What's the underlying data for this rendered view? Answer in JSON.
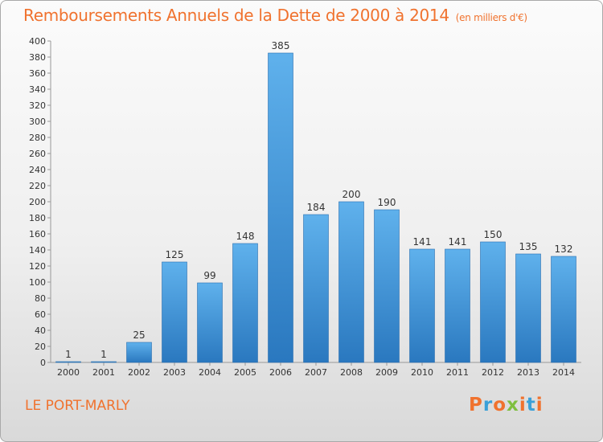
{
  "chart_data": {
    "type": "bar",
    "title": "Remboursements Annuels de la Dette de 2000 à 2014",
    "subtitle": "(en milliers d'€)",
    "categories": [
      "2000",
      "2001",
      "2002",
      "2003",
      "2004",
      "2005",
      "2006",
      "2007",
      "2008",
      "2009",
      "2010",
      "2011",
      "2012",
      "2013",
      "2014"
    ],
    "values": [
      1,
      1,
      25,
      125,
      99,
      148,
      385,
      184,
      200,
      190,
      141,
      141,
      150,
      135,
      132
    ],
    "ylim": [
      0,
      400
    ],
    "yticks": [
      0,
      20,
      40,
      60,
      80,
      100,
      120,
      140,
      160,
      180,
      200,
      220,
      240,
      260,
      280,
      300,
      320,
      340,
      360,
      380,
      400
    ],
    "grid": false,
    "bar_color": "#3f95d8"
  },
  "footer": {
    "commune": "LE PORT-MARLY",
    "logo": "Proxiti"
  },
  "colors": {
    "title": "#f0722e",
    "logo_letters": [
      "#f0722e",
      "#3aa0d8",
      "#f0722e",
      "#7fbf3f",
      "#f0722e",
      "#3aa0d8",
      "#f0722e"
    ]
  }
}
